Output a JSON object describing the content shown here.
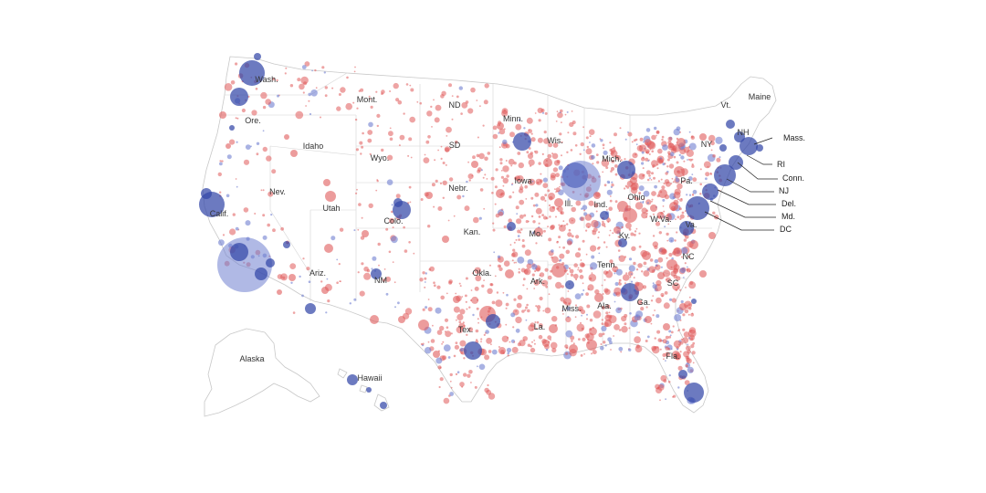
{
  "map": {
    "colors": {
      "dem": "#3346a8",
      "rep": "#e05a5a",
      "dem_light": "#6f7fd0",
      "rep_light": "#ec8f8f",
      "land": "#ffffff",
      "border": "#cfcfcf"
    },
    "state_labels": [
      "Wash.",
      "Mont.",
      "ND",
      "Minn.",
      "Maine",
      "Vt.",
      "Ore.",
      "Idaho",
      "SD",
      "Wis.",
      "NY",
      "NH",
      "Mass.",
      "Wyo.",
      "Mich.",
      "RI",
      "Conn.",
      "Nev.",
      "Iowa",
      "Nebr.",
      "Pa.",
      "NJ",
      "Utah",
      "Ill.",
      "Ind.",
      "Ohio",
      "Del.",
      "Calif.",
      "Colo.",
      "W.Va.",
      "Md.",
      "Va.",
      "DC",
      "Kan.",
      "Mo.",
      "Ky.",
      "NC",
      "Tenn.",
      "Ariz.",
      "Okla.",
      "NM",
      "Ark.",
      "SC",
      "Ga.",
      "Ala.",
      "Miss.",
      "Tex.",
      "La.",
      "Fla.",
      "Alaska",
      "Hawaii"
    ],
    "callout_labels": [
      "Mass.",
      "RI",
      "Conn.",
      "NJ",
      "Del.",
      "Md.",
      "DC"
    ]
  }
}
